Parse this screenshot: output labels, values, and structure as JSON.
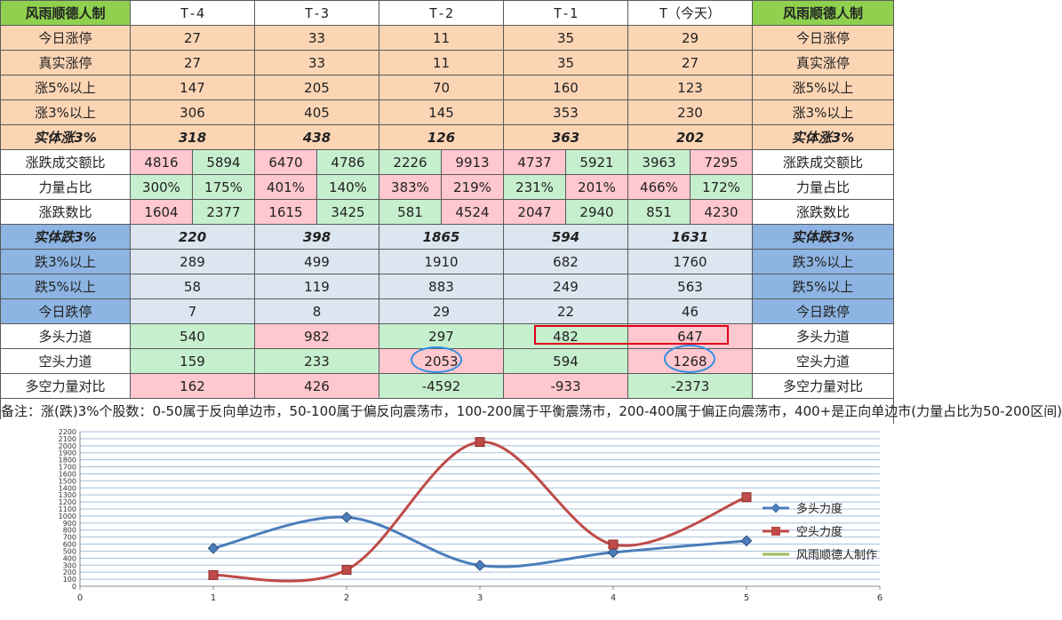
{
  "table": {
    "corner_label": "风雨顺德人制",
    "columns": [
      "T-4",
      "T-3",
      "T-2",
      "T-1",
      "T（今天）"
    ],
    "rows": {
      "limit_up": {
        "label": "今日涨停",
        "values": [
          "27",
          "33",
          "11",
          "35",
          "29"
        ]
      },
      "real_limit_up": {
        "label": "真实涨停",
        "values": [
          "27",
          "33",
          "11",
          "35",
          "27"
        ]
      },
      "up5": {
        "label": "涨5%以上",
        "values": [
          "147",
          "205",
          "70",
          "160",
          "123"
        ]
      },
      "up3": {
        "label": "涨3%以上",
        "values": [
          "306",
          "405",
          "145",
          "353",
          "230"
        ]
      },
      "solid_up3": {
        "label": "实体涨3%",
        "values": [
          "318",
          "438",
          "126",
          "363",
          "202"
        ]
      },
      "turnover_ratio": {
        "label": "涨跌成交额比",
        "values": [
          [
            "4816",
            "5894"
          ],
          [
            "6470",
            "4786"
          ],
          [
            "2226",
            "9913"
          ],
          [
            "4737",
            "5921"
          ],
          [
            "3963",
            "7295"
          ]
        ]
      },
      "power_ratio": {
        "label": "力量占比",
        "values": [
          [
            "300%",
            "175%"
          ],
          [
            "401%",
            "140%"
          ],
          [
            "383%",
            "219%"
          ],
          [
            "231%",
            "201%"
          ],
          [
            "466%",
            "172%"
          ]
        ]
      },
      "updown_count": {
        "label": "涨跌数比",
        "values": [
          [
            "1604",
            "2377"
          ],
          [
            "1615",
            "3425"
          ],
          [
            "581",
            "4524"
          ],
          [
            "2047",
            "2940"
          ],
          [
            "851",
            "4230"
          ]
        ]
      },
      "solid_down3": {
        "label": "实体跌3%",
        "values": [
          "220",
          "398",
          "1865",
          "594",
          "1631"
        ]
      },
      "down3": {
        "label": "跌3%以上",
        "values": [
          "289",
          "499",
          "1910",
          "682",
          "1760"
        ]
      },
      "down5": {
        "label": "跌5%以上",
        "values": [
          "58",
          "119",
          "883",
          "249",
          "563"
        ]
      },
      "limit_down": {
        "label": "今日跌停",
        "values": [
          "7",
          "8",
          "29",
          "22",
          "46"
        ]
      },
      "bull_power": {
        "label": "多头力道",
        "values": [
          "540",
          "982",
          "297",
          "482",
          "647"
        ]
      },
      "bear_power": {
        "label": "空头力道",
        "values": [
          "159",
          "233",
          "2053",
          "594",
          "1268"
        ]
      },
      "bull_bear_diff": {
        "label": "多空力量对比",
        "values": [
          "162",
          "426",
          "-4592",
          "-933",
          "-2373"
        ]
      }
    },
    "note": "备注：涨(跌)3%个股数：0-50属于反向单边市，50-100属于偏反向震荡市，100-200属于平衡震荡市，200-400属于偏正向震荡市，400+是正向单边市(力量占比为50-200区间)"
  },
  "colors": {
    "bull": "#4a7ebb",
    "bear": "#be4b48",
    "maker": "#9bbb59"
  },
  "chart_data": {
    "type": "line",
    "x_ticks": [
      "0",
      "1",
      "2",
      "3",
      "4",
      "5",
      "6"
    ],
    "y_ticks": [
      "0",
      "100",
      "200",
      "300",
      "400",
      "500",
      "600",
      "700",
      "800",
      "900",
      "1000",
      "1100",
      "1200",
      "1300",
      "1400",
      "1500",
      "1600",
      "1700",
      "1800",
      "1900",
      "2000",
      "2100",
      "2200"
    ],
    "xlim": [
      0,
      6
    ],
    "ylim": [
      0,
      2200
    ],
    "grid": true,
    "legend_position": "right",
    "series": [
      {
        "name": "多头力度",
        "x": [
          1,
          2,
          3,
          4,
          5
        ],
        "y": [
          540,
          982,
          297,
          482,
          647
        ]
      },
      {
        "name": "空头力度",
        "x": [
          1,
          2,
          3,
          4,
          5
        ],
        "y": [
          159,
          233,
          2053,
          594,
          1268
        ]
      },
      {
        "name": "风雨顺德人制作",
        "x": [],
        "y": []
      }
    ]
  }
}
